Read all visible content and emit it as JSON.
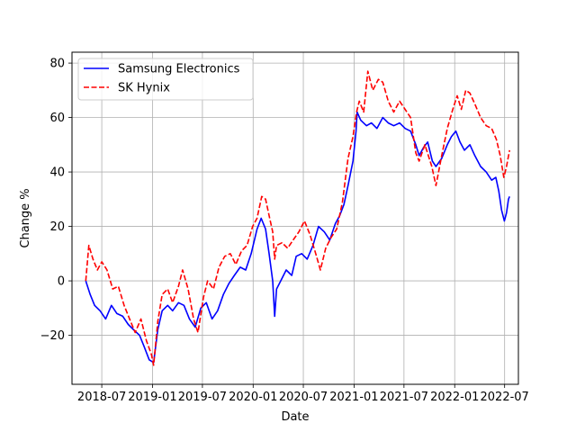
{
  "chart_data": {
    "type": "line",
    "xlabel": "Date",
    "ylabel": "Change %",
    "xlim": [
      "2018-03-15",
      "2022-08-20"
    ],
    "ylim": [
      -38,
      84
    ],
    "grid": true,
    "legend_position": "top-left",
    "x_ticks": [
      {
        "date": "2018-07-01",
        "label": "2018-07"
      },
      {
        "date": "2019-01-01",
        "label": "2019-01"
      },
      {
        "date": "2019-07-01",
        "label": "2019-07"
      },
      {
        "date": "2020-01-01",
        "label": "2020-01"
      },
      {
        "date": "2020-07-01",
        "label": "2020-07"
      },
      {
        "date": "2021-01-01",
        "label": "2021-01"
      },
      {
        "date": "2021-07-01",
        "label": "2021-07"
      },
      {
        "date": "2022-01-01",
        "label": "2022-01"
      },
      {
        "date": "2022-07-01",
        "label": "2022-07"
      }
    ],
    "y_ticks": [
      -20,
      0,
      20,
      40,
      60,
      80
    ],
    "series": [
      {
        "name": "Samsung Electronics",
        "color": "#0000ff",
        "style": "solid",
        "points": [
          [
            "2018-05-04",
            0
          ],
          [
            "2018-05-20",
            -5
          ],
          [
            "2018-06-05",
            -9
          ],
          [
            "2018-06-25",
            -11
          ],
          [
            "2018-07-15",
            -14
          ],
          [
            "2018-08-05",
            -9
          ],
          [
            "2018-08-25",
            -12
          ],
          [
            "2018-09-15",
            -13
          ],
          [
            "2018-10-05",
            -16
          ],
          [
            "2018-10-25",
            -18
          ],
          [
            "2018-11-15",
            -20
          ],
          [
            "2018-12-01",
            -24
          ],
          [
            "2018-12-20",
            -29
          ],
          [
            "2019-01-05",
            -30
          ],
          [
            "2019-01-20",
            -18
          ],
          [
            "2019-02-05",
            -11
          ],
          [
            "2019-02-25",
            -9
          ],
          [
            "2019-03-15",
            -11
          ],
          [
            "2019-04-05",
            -8
          ],
          [
            "2019-04-25",
            -9
          ],
          [
            "2019-05-15",
            -14
          ],
          [
            "2019-06-05",
            -17
          ],
          [
            "2019-06-25",
            -10
          ],
          [
            "2019-07-15",
            -8
          ],
          [
            "2019-08-05",
            -14
          ],
          [
            "2019-08-25",
            -11
          ],
          [
            "2019-09-15",
            -5
          ],
          [
            "2019-10-05",
            -1
          ],
          [
            "2019-10-25",
            2
          ],
          [
            "2019-11-15",
            5
          ],
          [
            "2019-12-05",
            4
          ],
          [
            "2019-12-25",
            10
          ],
          [
            "2020-01-15",
            19
          ],
          [
            "2020-01-30",
            23
          ],
          [
            "2020-02-15",
            19
          ],
          [
            "2020-02-28",
            10
          ],
          [
            "2020-03-12",
            0
          ],
          [
            "2020-03-19",
            -13
          ],
          [
            "2020-03-26",
            -3
          ],
          [
            "2020-04-10",
            0
          ],
          [
            "2020-04-30",
            4
          ],
          [
            "2020-05-20",
            2
          ],
          [
            "2020-06-05",
            9
          ],
          [
            "2020-06-25",
            10
          ],
          [
            "2020-07-15",
            8
          ],
          [
            "2020-08-05",
            13
          ],
          [
            "2020-08-25",
            20
          ],
          [
            "2020-09-15",
            18
          ],
          [
            "2020-10-05",
            15
          ],
          [
            "2020-10-25",
            21
          ],
          [
            "2020-11-10",
            24
          ],
          [
            "2020-11-25",
            28
          ],
          [
            "2020-12-10",
            35
          ],
          [
            "2020-12-28",
            44
          ],
          [
            "2021-01-08",
            55
          ],
          [
            "2021-01-12",
            62
          ],
          [
            "2021-01-25",
            59
          ],
          [
            "2021-02-15",
            57
          ],
          [
            "2021-03-05",
            58
          ],
          [
            "2021-03-25",
            56
          ],
          [
            "2021-04-15",
            60
          ],
          [
            "2021-05-05",
            58
          ],
          [
            "2021-05-25",
            57
          ],
          [
            "2021-06-15",
            58
          ],
          [
            "2021-07-05",
            56
          ],
          [
            "2021-07-25",
            55
          ],
          [
            "2021-08-13",
            50
          ],
          [
            "2021-08-25",
            46
          ],
          [
            "2021-09-10",
            49
          ],
          [
            "2021-09-25",
            51
          ],
          [
            "2021-10-12",
            44
          ],
          [
            "2021-10-25",
            42
          ],
          [
            "2021-11-15",
            45
          ],
          [
            "2021-12-05",
            50
          ],
          [
            "2021-12-20",
            53
          ],
          [
            "2022-01-05",
            55
          ],
          [
            "2022-01-20",
            51
          ],
          [
            "2022-02-05",
            48
          ],
          [
            "2022-02-25",
            50
          ],
          [
            "2022-03-15",
            46
          ],
          [
            "2022-04-05",
            42
          ],
          [
            "2022-04-25",
            40
          ],
          [
            "2022-05-15",
            37
          ],
          [
            "2022-05-30",
            38
          ],
          [
            "2022-06-10",
            33
          ],
          [
            "2022-06-20",
            26
          ],
          [
            "2022-06-30",
            22
          ],
          [
            "2022-07-08",
            25
          ],
          [
            "2022-07-15",
            30
          ],
          [
            "2022-07-19",
            31
          ]
        ]
      },
      {
        "name": "SK Hynix",
        "color": "#ff0000",
        "style": "dashed",
        "points": [
          [
            "2018-05-04",
            0
          ],
          [
            "2018-05-15",
            13
          ],
          [
            "2018-05-30",
            8
          ],
          [
            "2018-06-15",
            4
          ],
          [
            "2018-07-01",
            7
          ],
          [
            "2018-07-20",
            4
          ],
          [
            "2018-08-10",
            -3
          ],
          [
            "2018-08-30",
            -2
          ],
          [
            "2018-09-20",
            -9
          ],
          [
            "2018-10-10",
            -14
          ],
          [
            "2018-10-30",
            -19
          ],
          [
            "2018-11-20",
            -14
          ],
          [
            "2018-12-10",
            -22
          ],
          [
            "2018-12-28",
            -27
          ],
          [
            "2019-01-05",
            -31
          ],
          [
            "2019-01-20",
            -15
          ],
          [
            "2019-02-05",
            -5
          ],
          [
            "2019-02-25",
            -3
          ],
          [
            "2019-03-15",
            -8
          ],
          [
            "2019-04-05",
            -2
          ],
          [
            "2019-04-20",
            4
          ],
          [
            "2019-05-10",
            -3
          ],
          [
            "2019-05-30",
            -14
          ],
          [
            "2019-06-15",
            -19
          ],
          [
            "2019-07-05",
            -6
          ],
          [
            "2019-07-20",
            0
          ],
          [
            "2019-08-10",
            -3
          ],
          [
            "2019-08-30",
            5
          ],
          [
            "2019-09-20",
            9
          ],
          [
            "2019-10-10",
            10
          ],
          [
            "2019-10-30",
            6
          ],
          [
            "2019-11-20",
            11
          ],
          [
            "2019-12-10",
            13
          ],
          [
            "2019-12-30",
            20
          ],
          [
            "2020-01-15",
            23
          ],
          [
            "2020-02-01",
            31
          ],
          [
            "2020-02-15",
            30
          ],
          [
            "2020-02-28",
            24
          ],
          [
            "2020-03-12",
            18
          ],
          [
            "2020-03-19",
            8
          ],
          [
            "2020-03-26",
            13
          ],
          [
            "2020-04-15",
            14
          ],
          [
            "2020-05-05",
            12
          ],
          [
            "2020-05-25",
            15
          ],
          [
            "2020-06-15",
            18
          ],
          [
            "2020-07-05",
            22
          ],
          [
            "2020-07-25",
            17
          ],
          [
            "2020-08-15",
            10
          ],
          [
            "2020-09-01",
            4
          ],
          [
            "2020-09-20",
            12
          ],
          [
            "2020-10-10",
            16
          ],
          [
            "2020-10-30",
            19
          ],
          [
            "2020-11-20",
            29
          ],
          [
            "2020-12-10",
            45
          ],
          [
            "2020-12-28",
            53
          ],
          [
            "2021-01-10",
            62
          ],
          [
            "2021-01-20",
            66
          ],
          [
            "2021-02-05",
            62
          ],
          [
            "2021-02-20",
            77
          ],
          [
            "2021-03-10",
            70
          ],
          [
            "2021-03-30",
            74
          ],
          [
            "2021-04-15",
            73
          ],
          [
            "2021-05-05",
            66
          ],
          [
            "2021-05-25",
            62
          ],
          [
            "2021-06-15",
            66
          ],
          [
            "2021-07-05",
            63
          ],
          [
            "2021-07-25",
            60
          ],
          [
            "2021-08-13",
            47
          ],
          [
            "2021-08-25",
            44
          ],
          [
            "2021-09-15",
            50
          ],
          [
            "2021-10-10",
            42
          ],
          [
            "2021-10-25",
            35
          ],
          [
            "2021-11-15",
            46
          ],
          [
            "2021-12-05",
            56
          ],
          [
            "2021-12-25",
            63
          ],
          [
            "2022-01-10",
            68
          ],
          [
            "2022-01-25",
            63
          ],
          [
            "2022-02-10",
            70
          ],
          [
            "2022-02-25",
            69
          ],
          [
            "2022-03-15",
            65
          ],
          [
            "2022-04-05",
            60
          ],
          [
            "2022-04-25",
            57
          ],
          [
            "2022-05-15",
            56
          ],
          [
            "2022-06-01",
            52
          ],
          [
            "2022-06-15",
            46
          ],
          [
            "2022-06-28",
            38
          ],
          [
            "2022-07-08",
            42
          ],
          [
            "2022-07-19",
            48
          ]
        ]
      }
    ]
  }
}
